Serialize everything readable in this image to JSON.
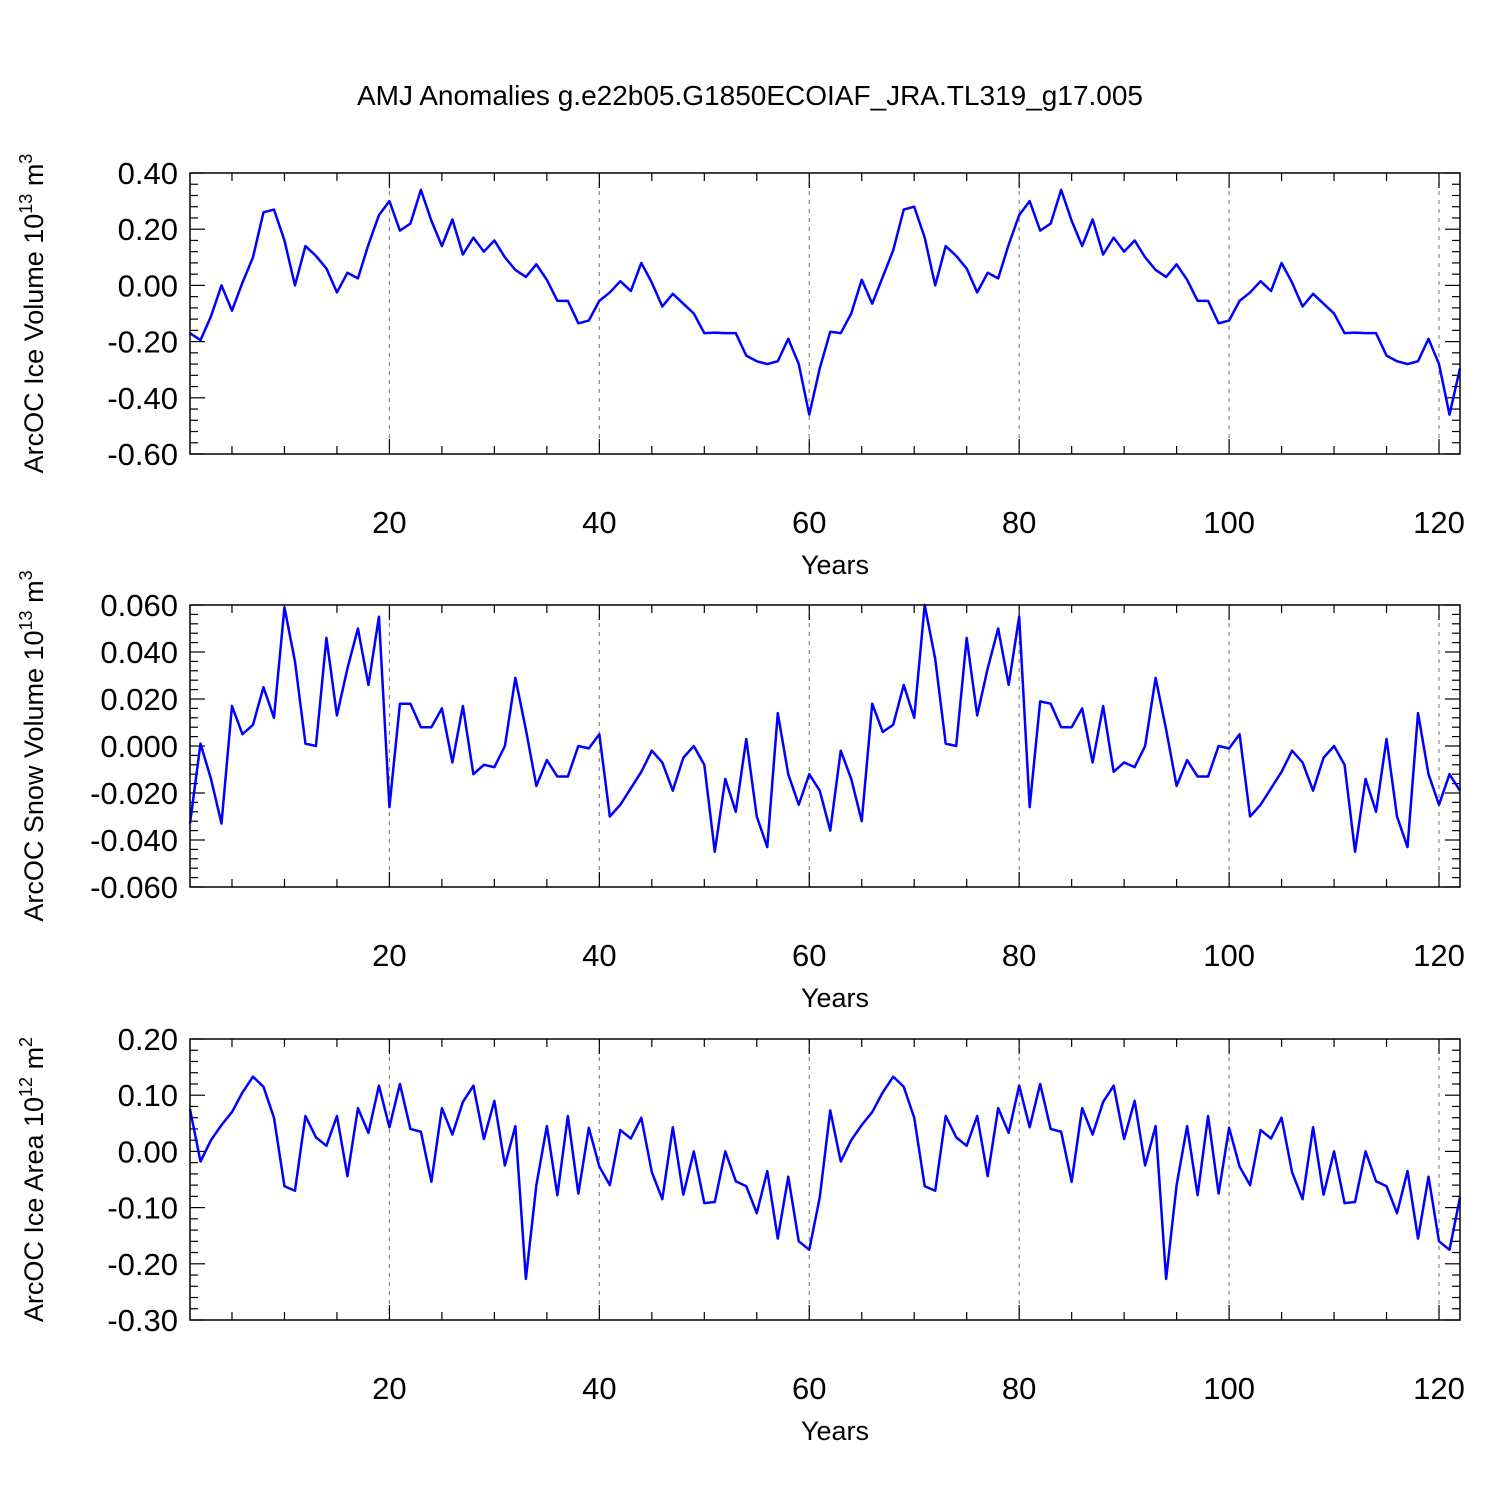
{
  "figure_title": "AMJ Anomalies g.e22b05.G1850ECOIAF_JRA.TL319_g17.005",
  "chart_data": [
    {
      "type": "line",
      "title": "AMJ Anomalies g.e22b05.G1850ECOIAF_JRA.TL319_g17.005",
      "xlabel": "Years",
      "ylabel_main": "ArcOC Ice Volume 10",
      "ylabel_sup": "13",
      "ylabel_tail": " m",
      "ylabel_sup2": "3",
      "xlim": [
        1,
        122
      ],
      "ylim": [
        -0.6,
        0.4
      ],
      "x_ticks": [
        20,
        40,
        60,
        80,
        100,
        120
      ],
      "x_tick_labels": [
        "20",
        "40",
        "60",
        "80",
        "100",
        "120"
      ],
      "y_ticks": [
        -0.6,
        -0.4,
        -0.2,
        0.0,
        0.2,
        0.4
      ],
      "y_tick_labels": [
        "-0.60",
        "-0.40",
        "-0.20",
        "0.00",
        "0.20",
        "0.40"
      ],
      "grid_x": [
        20,
        40,
        60,
        80,
        100,
        120
      ],
      "line_color": "#0000ff",
      "series": [
        {
          "name": "ArcOC Ice Volume",
          "x_start": 1,
          "values": [
            -0.17,
            -0.195,
            -0.11,
            0.0,
            -0.09,
            0.01,
            0.1,
            0.26,
            0.27,
            0.16,
            0.0,
            0.14,
            0.105,
            0.06,
            -0.025,
            0.045,
            0.025,
            0.145,
            0.25,
            0.3,
            0.195,
            0.22,
            0.34,
            0.23,
            0.14,
            0.235,
            0.11,
            0.17,
            0.12,
            0.16,
            0.1,
            0.055,
            0.03,
            0.075,
            0.02,
            -0.055,
            -0.055,
            -0.135,
            -0.125,
            -0.055,
            -0.025,
            0.015,
            -0.02,
            0.08,
            0.01,
            -0.075,
            -0.03,
            -0.065,
            -0.1,
            -0.17,
            -0.168,
            -0.17,
            -0.17,
            -0.25,
            -0.27,
            -0.28,
            -0.27,
            -0.19,
            -0.28,
            -0.46,
            -0.295,
            -0.165,
            -0.17,
            -0.1,
            0.02,
            -0.065,
            0.03,
            0.125,
            0.27,
            0.28,
            0.17,
            0.0,
            0.14,
            0.105,
            0.06,
            -0.025,
            0.045,
            0.025,
            0.145,
            0.25,
            0.3,
            0.195,
            0.22,
            0.34,
            0.23,
            0.14,
            0.235,
            0.11,
            0.17,
            0.12,
            0.16,
            0.1,
            0.055,
            0.03,
            0.075,
            0.02,
            -0.055,
            -0.055,
            -0.135,
            -0.125,
            -0.055,
            -0.025,
            0.015,
            -0.02,
            0.08,
            0.01,
            -0.075,
            -0.03,
            -0.065,
            -0.1,
            -0.17,
            -0.168,
            -0.17,
            -0.17,
            -0.25,
            -0.27,
            -0.28,
            -0.27,
            -0.19,
            -0.28,
            -0.46,
            -0.295
          ]
        }
      ]
    },
    {
      "type": "line",
      "xlabel": "Years",
      "ylabel_main": "ArcOC Snow Volume 10",
      "ylabel_sup": "13",
      "ylabel_tail": " m",
      "ylabel_sup2": "3",
      "xlim": [
        1,
        122
      ],
      "ylim": [
        -0.06,
        0.06
      ],
      "x_ticks": [
        20,
        40,
        60,
        80,
        100,
        120
      ],
      "x_tick_labels": [
        "20",
        "40",
        "60",
        "80",
        "100",
        "120"
      ],
      "y_ticks": [
        -0.06,
        -0.04,
        -0.02,
        0.0,
        0.02,
        0.04,
        0.06
      ],
      "y_tick_labels": [
        "-0.060",
        "-0.040",
        "-0.020",
        "0.000",
        "0.020",
        "0.040",
        "0.060"
      ],
      "grid_x": [
        20,
        40,
        60,
        80,
        100,
        120
      ],
      "line_color": "#0000ff",
      "series": [
        {
          "name": "ArcOC Snow Volume",
          "x_start": 1,
          "values": [
            -0.033,
            0.001,
            -0.014,
            -0.033,
            0.017,
            0.005,
            0.009,
            0.025,
            0.012,
            0.059,
            0.036,
            0.001,
            0.0,
            0.046,
            0.013,
            0.033,
            0.05,
            0.026,
            0.055,
            -0.026,
            0.018,
            0.018,
            0.008,
            0.008,
            0.016,
            -0.007,
            0.017,
            -0.012,
            -0.008,
            -0.009,
            0.0,
            0.029,
            0.007,
            -0.017,
            -0.006,
            -0.013,
            -0.013,
            0.0,
            -0.001,
            0.005,
            -0.03,
            -0.025,
            -0.018,
            -0.011,
            -0.002,
            -0.007,
            -0.019,
            -0.005,
            0.0,
            -0.008,
            -0.045,
            -0.014,
            -0.028,
            0.003,
            -0.03,
            -0.043,
            0.014,
            -0.012,
            -0.025,
            -0.012,
            -0.019,
            -0.036,
            -0.002,
            -0.014,
            -0.032,
            0.018,
            0.006,
            0.009,
            0.026,
            0.012,
            0.06,
            0.037,
            0.001,
            0.0,
            0.046,
            0.013,
            0.033,
            0.05,
            0.026,
            0.055,
            -0.026,
            0.019,
            0.018,
            0.008,
            0.008,
            0.016,
            -0.007,
            0.017,
            -0.011,
            -0.007,
            -0.009,
            0.0,
            0.029,
            0.007,
            -0.017,
            -0.006,
            -0.013,
            -0.013,
            0.0,
            -0.001,
            0.005,
            -0.03,
            -0.025,
            -0.018,
            -0.011,
            -0.002,
            -0.007,
            -0.019,
            -0.005,
            0.0,
            -0.008,
            -0.045,
            -0.014,
            -0.028,
            0.003,
            -0.03,
            -0.043,
            0.014,
            -0.012,
            -0.025,
            -0.012,
            -0.019
          ]
        }
      ]
    },
    {
      "type": "line",
      "xlabel": "Years",
      "ylabel_main": "ArcOC Ice Area 10",
      "ylabel_sup": "12",
      "ylabel_tail": " m",
      "ylabel_sup2": "2",
      "xlim": [
        1,
        122
      ],
      "ylim": [
        -0.3,
        0.2
      ],
      "x_ticks": [
        20,
        40,
        60,
        80,
        100,
        120
      ],
      "x_tick_labels": [
        "20",
        "40",
        "60",
        "80",
        "100",
        "120"
      ],
      "y_ticks": [
        -0.3,
        -0.2,
        -0.1,
        0.0,
        0.1,
        0.2
      ],
      "y_tick_labels": [
        "-0.30",
        "-0.20",
        "-0.10",
        "0.00",
        "0.10",
        "0.20"
      ],
      "grid_x": [
        20,
        40,
        60,
        80,
        100,
        120
      ],
      "line_color": "#0000ff",
      "series": [
        {
          "name": "ArcOC Ice Area",
          "x_start": 1,
          "values": [
            0.075,
            -0.018,
            0.02,
            0.047,
            0.07,
            0.105,
            0.133,
            0.115,
            0.06,
            -0.062,
            -0.07,
            0.063,
            0.025,
            0.01,
            0.063,
            -0.044,
            0.077,
            0.033,
            0.117,
            0.043,
            0.12,
            0.04,
            0.035,
            -0.054,
            0.077,
            0.03,
            0.088,
            0.117,
            0.022,
            0.09,
            -0.025,
            0.045,
            -0.227,
            -0.06,
            0.045,
            -0.078,
            0.063,
            -0.075,
            0.042,
            -0.027,
            -0.06,
            0.038,
            0.023,
            0.06,
            -0.037,
            -0.085,
            0.043,
            -0.077,
            0.0,
            -0.092,
            -0.09,
            0.0,
            -0.053,
            -0.062,
            -0.11,
            -0.035,
            -0.155,
            -0.045,
            -0.16,
            -0.175,
            -0.082,
            0.073,
            -0.018,
            0.02,
            0.047,
            0.07,
            0.105,
            0.133,
            0.115,
            0.06,
            -0.062,
            -0.07,
            0.063,
            0.025,
            0.01,
            0.063,
            -0.044,
            0.077,
            0.033,
            0.117,
            0.043,
            0.12,
            0.04,
            0.035,
            -0.054,
            0.077,
            0.03,
            0.088,
            0.117,
            0.022,
            0.09,
            -0.025,
            0.045,
            -0.227,
            -0.06,
            0.045,
            -0.078,
            0.063,
            -0.075,
            0.042,
            -0.027,
            -0.06,
            0.038,
            0.023,
            0.06,
            -0.037,
            -0.085,
            0.043,
            -0.077,
            0.0,
            -0.092,
            -0.09,
            0.0,
            -0.053,
            -0.062,
            -0.11,
            -0.035,
            -0.155,
            -0.045,
            -0.16,
            -0.175,
            -0.082
          ]
        }
      ]
    }
  ]
}
